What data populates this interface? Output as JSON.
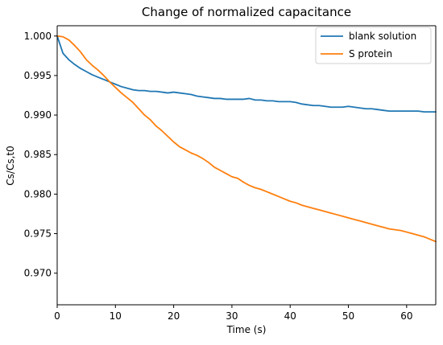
{
  "chart_data": {
    "type": "line",
    "title": "Change of normalized capacitance",
    "xlabel": "Time (s)",
    "ylabel": "Cs/Cs,t0",
    "xlim": [
      0,
      65
    ],
    "ylim": [
      0.966,
      1.0013
    ],
    "xticks": [
      0,
      10,
      20,
      30,
      40,
      50,
      60
    ],
    "yticks": [
      0.97,
      0.975,
      0.98,
      0.985,
      0.99,
      0.995,
      1.0
    ],
    "ytick_labels": [
      "0.970",
      "0.975",
      "0.980",
      "0.985",
      "0.990",
      "0.995",
      "1.000"
    ],
    "grid": false,
    "legend_position": "top-right",
    "series": [
      {
        "name": "blank solution",
        "color": "#1f77b4",
        "x": [
          0,
          1,
          2,
          3,
          4,
          5,
          6,
          7,
          8,
          9,
          10,
          11,
          12,
          13,
          14,
          15,
          16,
          17,
          18,
          19,
          20,
          21,
          22,
          23,
          24,
          25,
          26,
          27,
          28,
          29,
          30,
          31,
          32,
          33,
          34,
          35,
          36,
          37,
          38,
          39,
          40,
          41,
          42,
          43,
          44,
          45,
          46,
          47,
          48,
          49,
          50,
          51,
          52,
          53,
          54,
          55,
          56,
          57,
          58,
          59,
          60,
          61,
          62,
          63,
          64,
          65
        ],
        "y": [
          1.0,
          0.9978,
          0.997,
          0.9964,
          0.9959,
          0.9955,
          0.9951,
          0.9948,
          0.9945,
          0.9942,
          0.9939,
          0.9936,
          0.9934,
          0.9932,
          0.9931,
          0.9931,
          0.993,
          0.993,
          0.9929,
          0.9928,
          0.9929,
          0.9928,
          0.9927,
          0.9926,
          0.9924,
          0.9923,
          0.9922,
          0.9921,
          0.9921,
          0.992,
          0.992,
          0.992,
          0.992,
          0.9921,
          0.9919,
          0.9919,
          0.9918,
          0.9918,
          0.9917,
          0.9917,
          0.9917,
          0.9916,
          0.9914,
          0.9913,
          0.9912,
          0.9912,
          0.9911,
          0.991,
          0.991,
          0.991,
          0.9911,
          0.991,
          0.9909,
          0.9908,
          0.9908,
          0.9907,
          0.9906,
          0.9905,
          0.9905,
          0.9905,
          0.9905,
          0.9905,
          0.9905,
          0.9904,
          0.9904,
          0.9904
        ]
      },
      {
        "name": "S protein",
        "color": "#ff7f0e",
        "x": [
          0,
          1,
          2,
          3,
          4,
          5,
          6,
          7,
          8,
          9,
          10,
          11,
          12,
          13,
          14,
          15,
          16,
          17,
          18,
          19,
          20,
          21,
          22,
          23,
          24,
          25,
          26,
          27,
          28,
          29,
          30,
          31,
          32,
          33,
          34,
          35,
          36,
          37,
          38,
          39,
          40,
          41,
          42,
          43,
          44,
          45,
          46,
          47,
          48,
          49,
          50,
          51,
          52,
          53,
          54,
          55,
          56,
          57,
          58,
          59,
          60,
          61,
          62,
          63,
          64,
          65
        ],
        "y": [
          1.0,
          0.9999,
          0.9995,
          0.9988,
          0.998,
          0.997,
          0.9963,
          0.9957,
          0.995,
          0.9942,
          0.9935,
          0.9928,
          0.9922,
          0.9916,
          0.9908,
          0.99,
          0.9894,
          0.9886,
          0.988,
          0.9873,
          0.9866,
          0.986,
          0.9856,
          0.9852,
          0.9849,
          0.9845,
          0.984,
          0.9834,
          0.983,
          0.9826,
          0.9822,
          0.982,
          0.9815,
          0.9811,
          0.9808,
          0.9806,
          0.9803,
          0.98,
          0.9797,
          0.9794,
          0.9791,
          0.9789,
          0.9786,
          0.9784,
          0.9782,
          0.978,
          0.9778,
          0.9776,
          0.9774,
          0.9772,
          0.977,
          0.9768,
          0.9766,
          0.9764,
          0.9762,
          0.976,
          0.9758,
          0.9756,
          0.9755,
          0.9754,
          0.9752,
          0.975,
          0.9748,
          0.9746,
          0.9743,
          0.974
        ]
      }
    ]
  }
}
